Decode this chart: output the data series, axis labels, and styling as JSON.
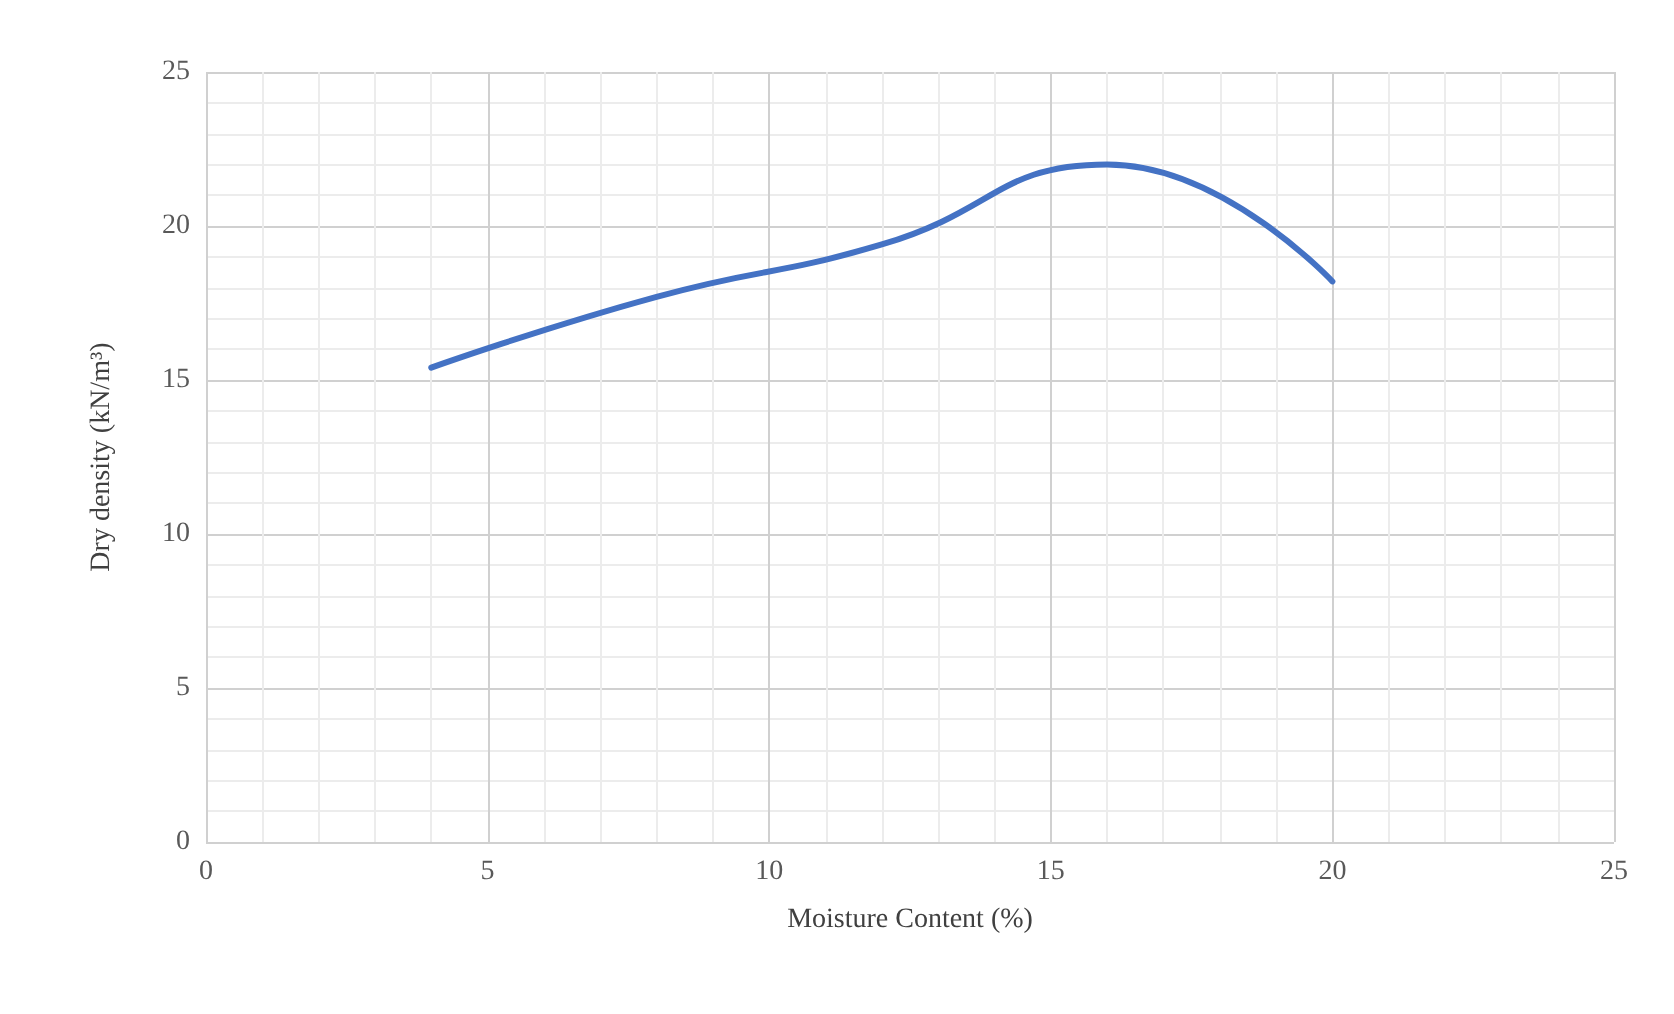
{
  "chart_data": {
    "type": "line",
    "xlabel": "Moisture Content (%)",
    "ylabel": "Dry density (kN/m³)",
    "x": [
      4,
      8,
      12,
      16,
      20
    ],
    "series": [
      {
        "color": "#4472c4",
        "values": [
          15.4,
          17.7,
          19.4,
          22.0,
          18.2
        ]
      }
    ],
    "xlim": [
      0,
      25
    ],
    "xticks": [
      0,
      5,
      10,
      15,
      20,
      25
    ],
    "ylim": [
      0,
      25
    ],
    "yticks": [
      0,
      5,
      10,
      15,
      20,
      25
    ],
    "grid": true,
    "marker": "none",
    "line_style": "solid"
  }
}
